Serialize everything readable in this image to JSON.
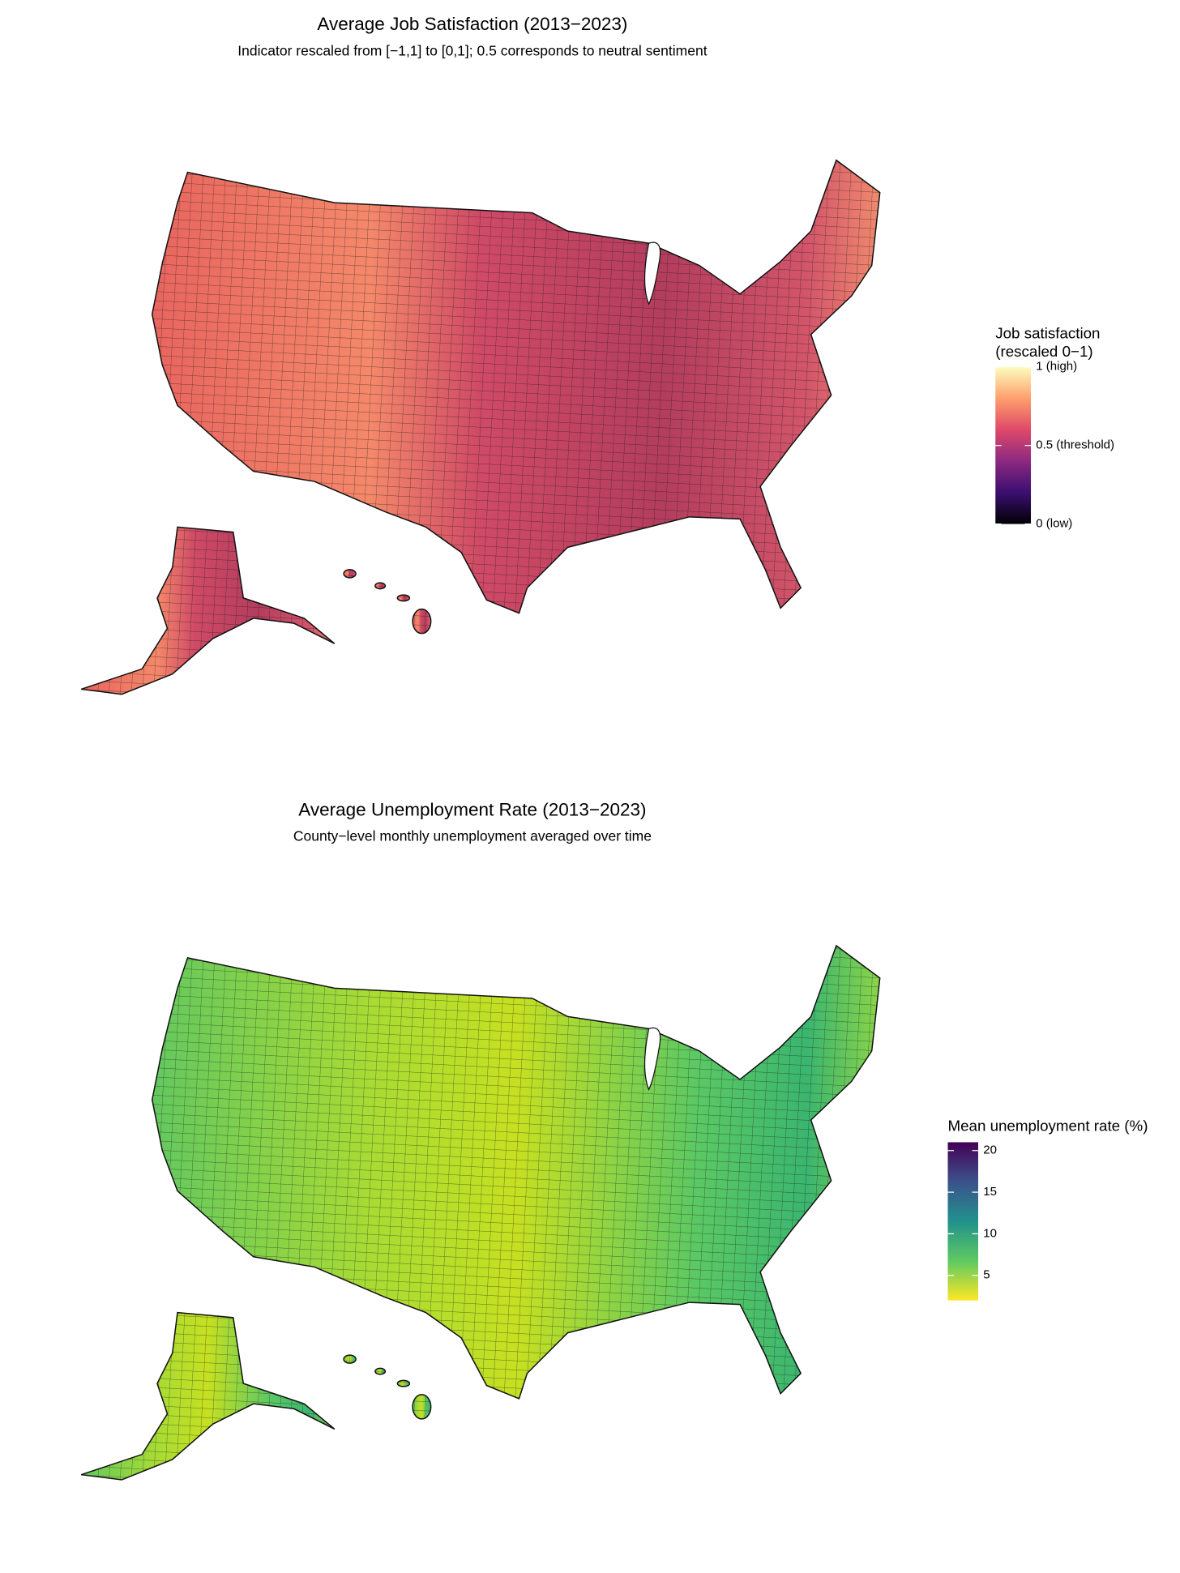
{
  "maps": [
    {
      "title": "Average Job Satisfaction (2013−2023)",
      "subtitle": "Indicator rescaled from [−1,1] to [0,1]; 0.5 corresponds to neutral sentiment",
      "legend": {
        "title_lines": [
          "Job satisfaction",
          "(rescaled 0−1)"
        ],
        "lim": [
          0,
          1
        ],
        "ticks": [
          {
            "value": 0,
            "label": "0 (low)"
          },
          {
            "value": 0.5,
            "label": "0.5 (threshold)"
          },
          {
            "value": 1,
            "label": "1 (high)"
          }
        ],
        "colors": [
          "#000004",
          "#3b0f70",
          "#8c2981",
          "#de4968",
          "#fe9f6d",
          "#fcfdbf"
        ]
      }
    },
    {
      "title": "Average Unemployment Rate (2013−2023)",
      "subtitle": "County−level monthly unemployment averaged over time",
      "legend": {
        "title_lines": [
          "Mean unemployment rate (%)"
        ],
        "lim": [
          2,
          21
        ],
        "ticks": [
          5,
          10,
          15,
          20
        ],
        "colors": [
          "#fde725",
          "#5ec962",
          "#21918c",
          "#3b528b",
          "#440154"
        ]
      }
    }
  ]
}
